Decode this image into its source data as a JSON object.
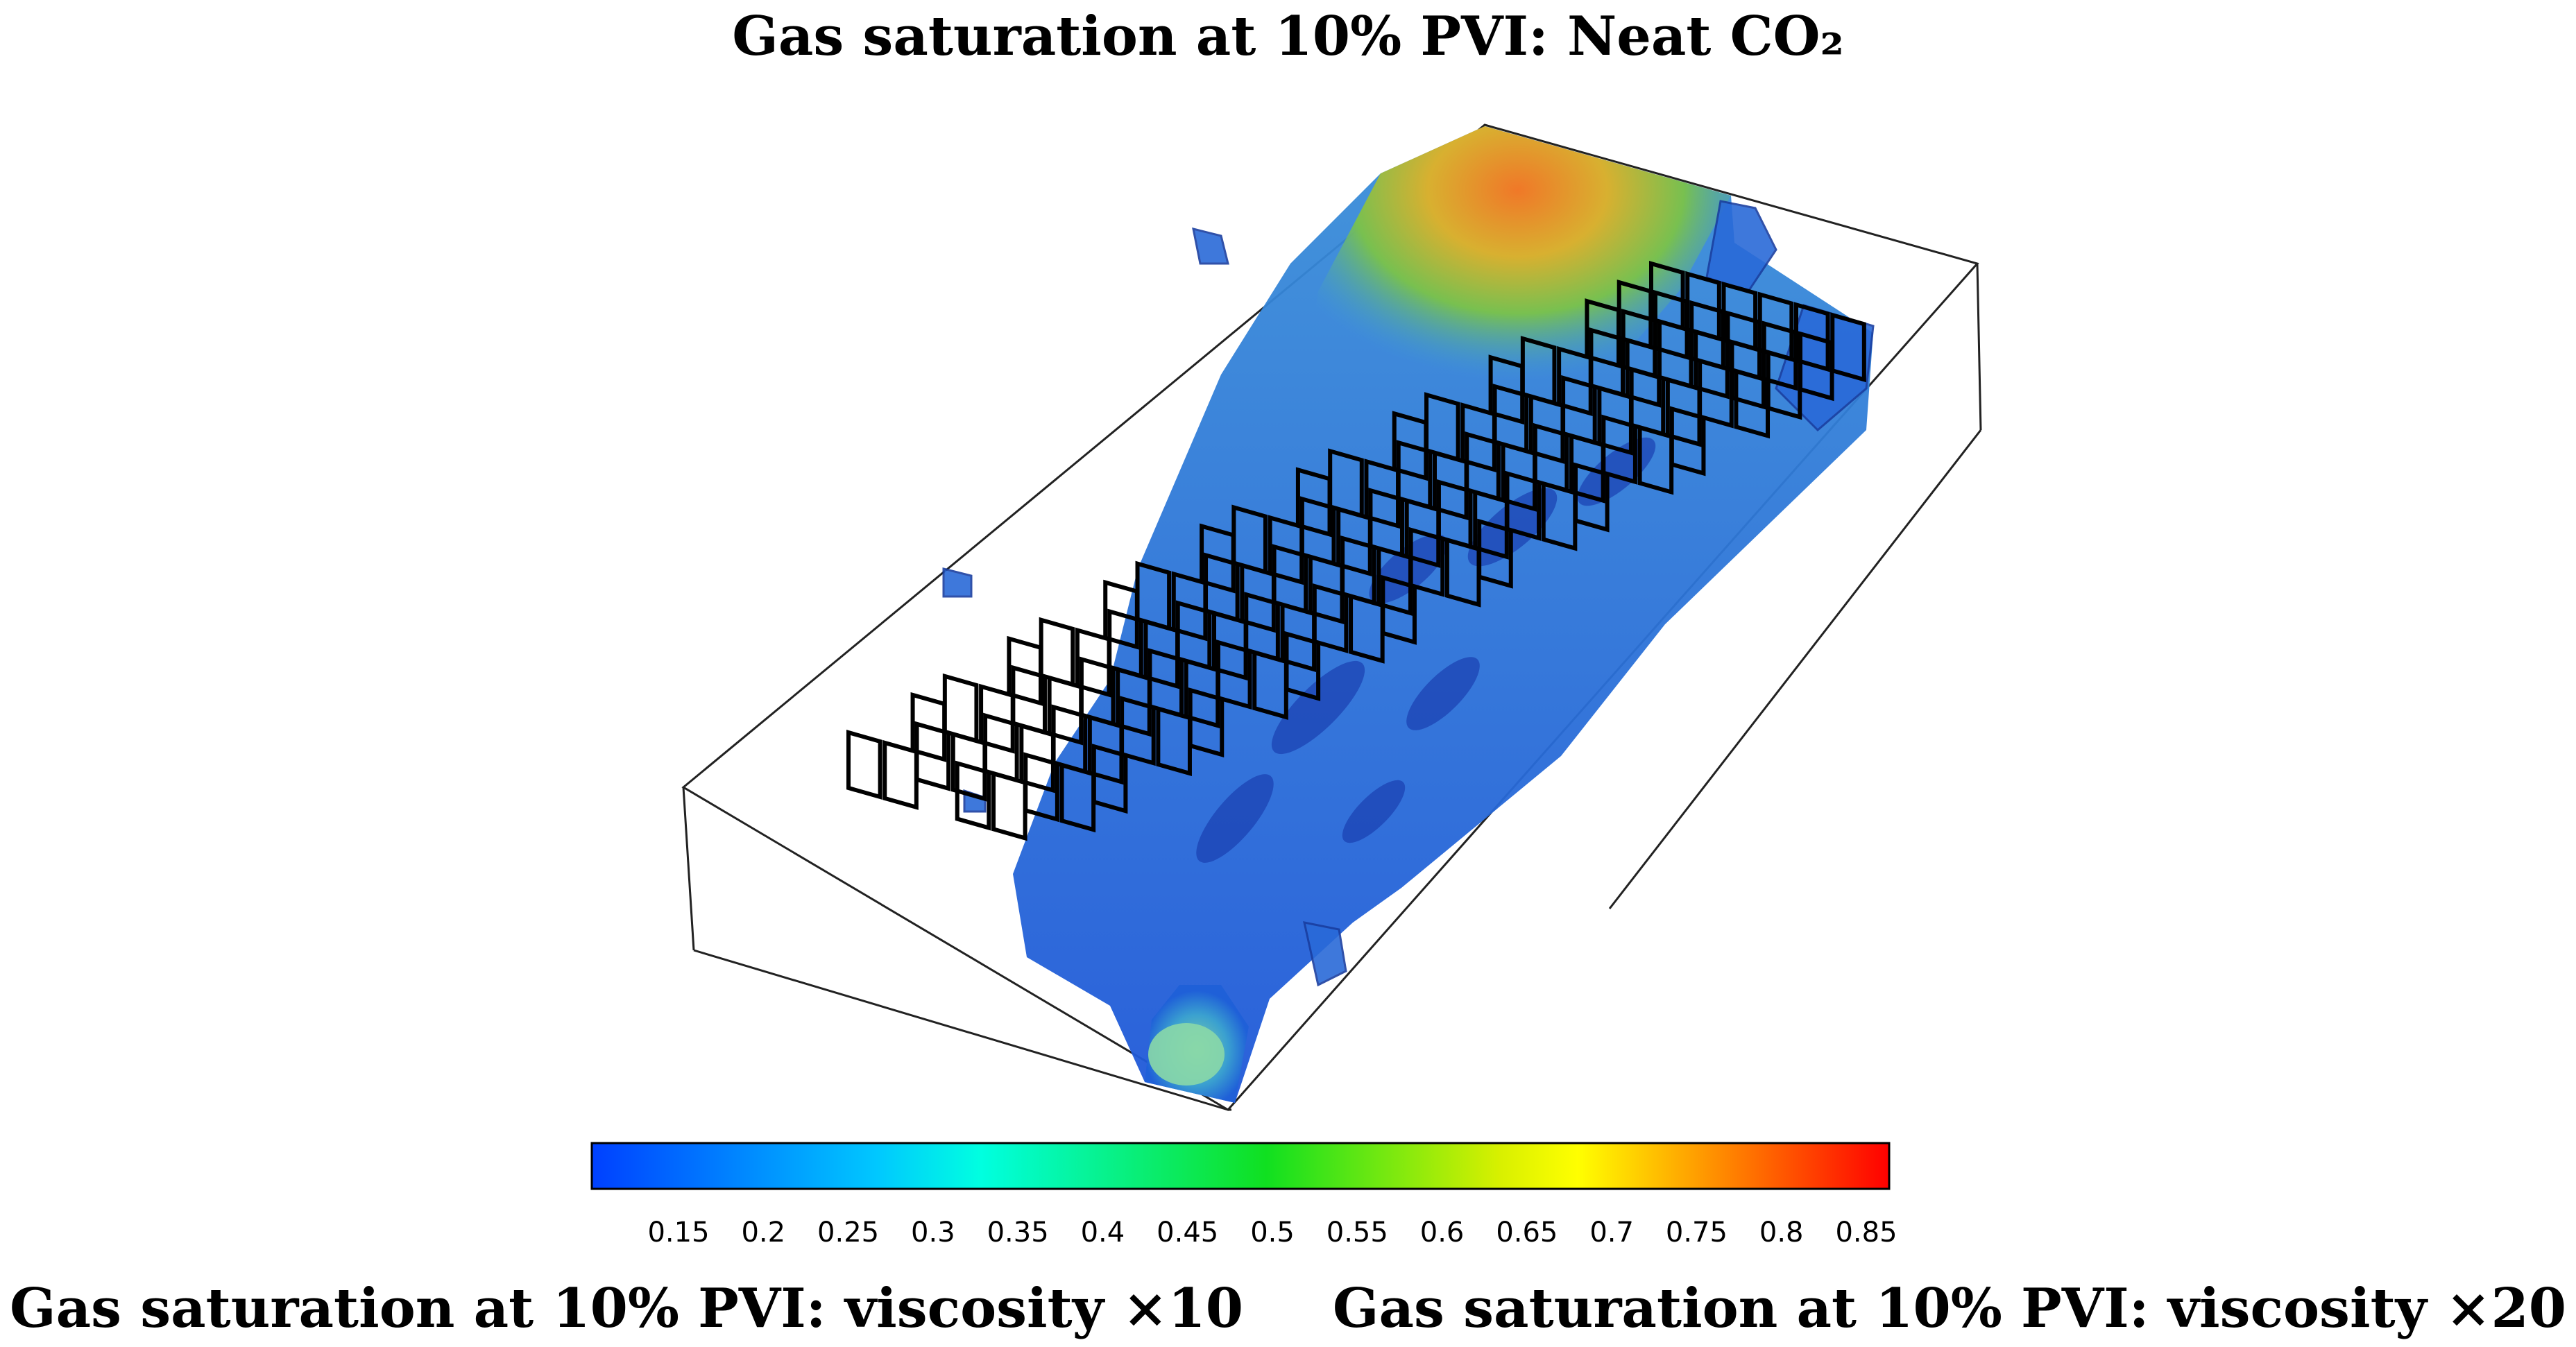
{
  "titles": {
    "main": "Gas saturation at 10% PVI: Neat CO₂",
    "left_caption": "Gas saturation at 10% PVI: viscosity ×10",
    "right_caption": "Gas saturation at 10% PVI: viscosity ×20"
  },
  "colorbar": {
    "ticks": [
      "0.15",
      "0.2",
      "0.25",
      "0.3",
      "0.35",
      "0.4",
      "0.45",
      "0.5",
      "0.55",
      "0.6",
      "0.65",
      "0.7",
      "0.75",
      "0.8",
      "0.85"
    ],
    "colors": {
      "low": "#0050ff",
      "cyan": "#00f0ff",
      "green": "#18e018",
      "yellow": "#ffff00",
      "orange": "#ffa000",
      "high": "#ff0000"
    }
  },
  "visualization": {
    "type": "3d-saturation-isosurface",
    "surface_colors": [
      "#1f5fe0",
      "#2f7fe8",
      "#45a0d8",
      "#7ac058",
      "#e8a830"
    ],
    "frame_color": "#000000"
  }
}
